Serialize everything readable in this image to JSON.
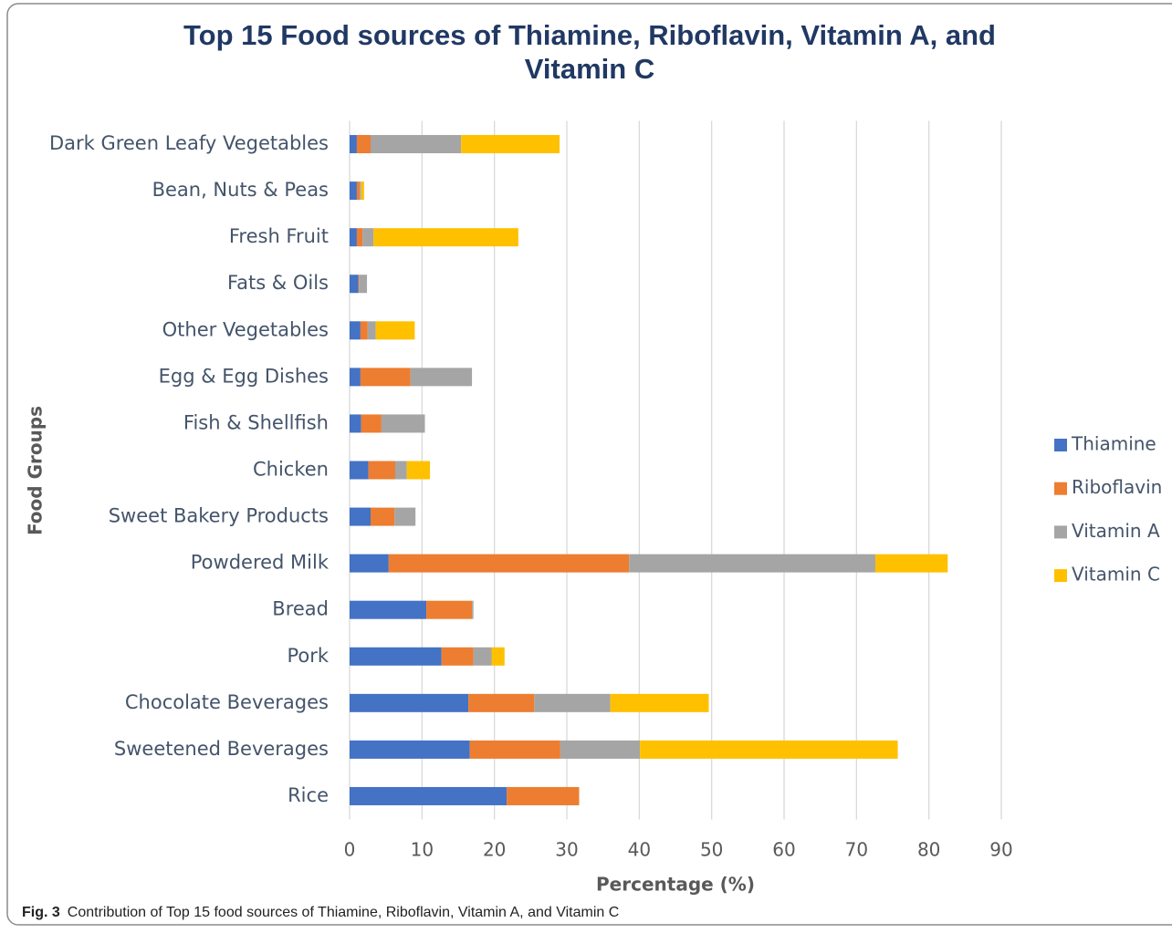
{
  "chart_data": {
    "type": "bar",
    "orientation": "horizontal",
    "stacked": true,
    "title": "Top 15 Food sources of Thiamine, Riboflavin, Vitamin A, and Vitamin C",
    "x_label": "Percentage (%)",
    "y_label": "Food Groups",
    "categories": [
      "Dark Green Leafy Vegetables",
      "Bean, Nuts & Peas",
      "Fresh Fruit",
      "Fats & Oils",
      "Other Vegetables",
      "Egg & Egg Dishes",
      "Fish & Shellfish",
      "Chicken",
      "Sweet Bakery Products",
      "Powdered Milk",
      "Bread",
      "Pork",
      "Chocolate Beverages",
      "Sweetened Beverages",
      "Rice"
    ],
    "series": [
      {
        "name": "Thiamine",
        "color": "#4472c4",
        "values": [
          1.0,
          1.0,
          1.0,
          1.2,
          1.5,
          1.5,
          1.6,
          2.6,
          2.9,
          5.4,
          10.6,
          12.7,
          16.4,
          16.6,
          21.7
        ]
      },
      {
        "name": "Riboflavin",
        "color": "#ed7d31",
        "values": [
          1.9,
          0.4,
          0.8,
          0.1,
          1.0,
          6.9,
          2.8,
          3.7,
          3.3,
          33.2,
          6.3,
          4.4,
          9.1,
          12.5,
          10.0
        ]
      },
      {
        "name": "Vitamin A",
        "color": "#a5a5a5",
        "values": [
          12.5,
          0.2,
          1.5,
          1.1,
          1.1,
          8.5,
          6.0,
          1.6,
          2.9,
          34.0,
          0.2,
          2.5,
          10.5,
          11.0,
          0
        ]
      },
      {
        "name": "Vitamin C",
        "color": "#ffc000",
        "values": [
          13.6,
          0.4,
          20.0,
          0,
          5.4,
          0,
          0,
          3.2,
          0,
          10.0,
          0,
          1.8,
          13.6,
          35.6,
          0
        ]
      }
    ],
    "xlim": [
      0,
      90
    ],
    "xticks": [
      0,
      10,
      20,
      30,
      40,
      50,
      60,
      70,
      80,
      90
    ],
    "grid": true,
    "legend": "right"
  },
  "caption": {
    "label": "Fig. 3",
    "text": "Contribution of Top 15 food sources of Thiamine, Riboflavin, Vitamin A, and Vitamin C"
  }
}
